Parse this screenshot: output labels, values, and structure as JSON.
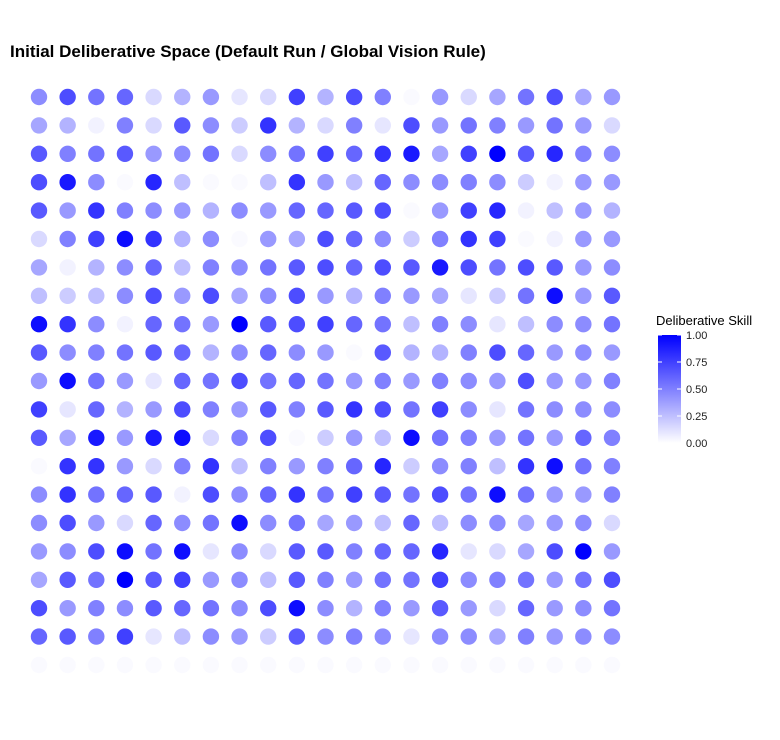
{
  "chart_data": {
    "type": "scatter",
    "title": "Initial Deliberative Space (Default Run / Global Vision Rule)",
    "xlabel": "",
    "ylabel": "",
    "grid": false,
    "color_scale": {
      "low": "#ffffff",
      "high": "#0000ff",
      "min": 0,
      "max": 1
    },
    "legend": {
      "title": "Deliberative Skill",
      "position": "right",
      "ticks": [
        {
          "value": 1.0,
          "label": "1.00"
        },
        {
          "value": 0.75,
          "label": "0.75"
        },
        {
          "value": 0.5,
          "label": "0.50"
        },
        {
          "value": 0.25,
          "label": "0.25"
        },
        {
          "value": 0.0,
          "label": "0.00"
        }
      ]
    },
    "n_cols": 21,
    "n_rows": 21,
    "skill_grid_top_to_bottom": [
      [
        0.45,
        0.7,
        0.55,
        0.6,
        0.15,
        0.3,
        0.4,
        0.1,
        0.15,
        0.75,
        0.3,
        0.7,
        0.5,
        0.02,
        0.4,
        0.15,
        0.35,
        0.55,
        0.7,
        0.35,
        0.4
      ],
      [
        0.35,
        0.3,
        0.05,
        0.5,
        0.15,
        0.65,
        0.45,
        0.2,
        0.8,
        0.3,
        0.15,
        0.5,
        0.1,
        0.7,
        0.4,
        0.55,
        0.5,
        0.4,
        0.55,
        0.4,
        0.15
      ],
      [
        0.65,
        0.5,
        0.55,
        0.65,
        0.4,
        0.45,
        0.55,
        0.15,
        0.45,
        0.55,
        0.75,
        0.6,
        0.8,
        0.9,
        0.35,
        0.75,
        1.0,
        0.65,
        0.85,
        0.5,
        0.45
      ],
      [
        0.7,
        0.9,
        0.45,
        0.02,
        0.85,
        0.25,
        0.02,
        0.02,
        0.25,
        0.8,
        0.4,
        0.25,
        0.6,
        0.45,
        0.45,
        0.5,
        0.45,
        0.2,
        0.05,
        0.4,
        0.4
      ],
      [
        0.65,
        0.4,
        0.8,
        0.5,
        0.45,
        0.4,
        0.3,
        0.45,
        0.4,
        0.6,
        0.6,
        0.65,
        0.7,
        0.02,
        0.4,
        0.75,
        0.85,
        0.05,
        0.25,
        0.4,
        0.3
      ],
      [
        0.15,
        0.5,
        0.75,
        0.95,
        0.8,
        0.3,
        0.45,
        0.02,
        0.4,
        0.35,
        0.7,
        0.6,
        0.45,
        0.2,
        0.5,
        0.8,
        0.75,
        0.02,
        0.05,
        0.4,
        0.4
      ],
      [
        0.35,
        0.05,
        0.3,
        0.45,
        0.6,
        0.25,
        0.5,
        0.45,
        0.55,
        0.65,
        0.7,
        0.6,
        0.7,
        0.65,
        0.9,
        0.7,
        0.55,
        0.7,
        0.65,
        0.4,
        0.45
      ],
      [
        0.25,
        0.2,
        0.25,
        0.45,
        0.7,
        0.4,
        0.7,
        0.35,
        0.45,
        0.7,
        0.4,
        0.3,
        0.5,
        0.4,
        0.35,
        0.1,
        0.2,
        0.55,
        0.95,
        0.4,
        0.65
      ],
      [
        0.95,
        0.8,
        0.45,
        0.05,
        0.6,
        0.55,
        0.4,
        1.0,
        0.65,
        0.7,
        0.75,
        0.6,
        0.55,
        0.25,
        0.5,
        0.45,
        0.1,
        0.25,
        0.45,
        0.45,
        0.55
      ],
      [
        0.65,
        0.45,
        0.5,
        0.55,
        0.65,
        0.6,
        0.3,
        0.45,
        0.6,
        0.45,
        0.4,
        0.02,
        0.65,
        0.3,
        0.3,
        0.5,
        0.7,
        0.6,
        0.4,
        0.45,
        0.4
      ],
      [
        0.4,
        0.95,
        0.55,
        0.4,
        0.1,
        0.6,
        0.55,
        0.7,
        0.55,
        0.6,
        0.55,
        0.4,
        0.5,
        0.4,
        0.5,
        0.45,
        0.4,
        0.7,
        0.4,
        0.4,
        0.5
      ],
      [
        0.75,
        0.1,
        0.6,
        0.3,
        0.4,
        0.7,
        0.5,
        0.4,
        0.65,
        0.5,
        0.65,
        0.8,
        0.7,
        0.55,
        0.75,
        0.45,
        0.1,
        0.55,
        0.45,
        0.45,
        0.45
      ],
      [
        0.65,
        0.35,
        0.9,
        0.4,
        0.9,
        0.95,
        0.15,
        0.5,
        0.7,
        0.02,
        0.2,
        0.4,
        0.25,
        0.95,
        0.55,
        0.5,
        0.4,
        0.55,
        0.4,
        0.6,
        0.5
      ],
      [
        0.02,
        0.8,
        0.8,
        0.4,
        0.15,
        0.5,
        0.8,
        0.25,
        0.5,
        0.4,
        0.5,
        0.6,
        0.85,
        0.2,
        0.45,
        0.5,
        0.25,
        0.8,
        0.95,
        0.55,
        0.5
      ],
      [
        0.45,
        0.8,
        0.55,
        0.6,
        0.65,
        0.05,
        0.7,
        0.45,
        0.6,
        0.8,
        0.55,
        0.75,
        0.65,
        0.55,
        0.7,
        0.55,
        0.95,
        0.55,
        0.4,
        0.4,
        0.5
      ],
      [
        0.45,
        0.7,
        0.4,
        0.15,
        0.6,
        0.45,
        0.55,
        0.95,
        0.45,
        0.55,
        0.35,
        0.4,
        0.25,
        0.6,
        0.25,
        0.45,
        0.45,
        0.35,
        0.4,
        0.45,
        0.15
      ],
      [
        0.4,
        0.45,
        0.7,
        0.95,
        0.55,
        0.95,
        0.1,
        0.45,
        0.15,
        0.65,
        0.65,
        0.5,
        0.6,
        0.6,
        0.85,
        0.1,
        0.15,
        0.35,
        0.7,
        1.0,
        0.4
      ],
      [
        0.35,
        0.65,
        0.55,
        1.0,
        0.65,
        0.75,
        0.4,
        0.45,
        0.25,
        0.65,
        0.5,
        0.4,
        0.55,
        0.55,
        0.75,
        0.45,
        0.5,
        0.55,
        0.4,
        0.55,
        0.7
      ],
      [
        0.7,
        0.4,
        0.5,
        0.45,
        0.65,
        0.6,
        0.55,
        0.45,
        0.7,
        0.95,
        0.45,
        0.3,
        0.5,
        0.4,
        0.65,
        0.4,
        0.15,
        0.6,
        0.4,
        0.45,
        0.55
      ],
      [
        0.6,
        0.65,
        0.5,
        0.75,
        0.1,
        0.25,
        0.45,
        0.4,
        0.2,
        0.65,
        0.45,
        0.5,
        0.45,
        0.1,
        0.45,
        0.45,
        0.35,
        0.5,
        0.4,
        0.45,
        0.45
      ],
      [
        0.02,
        0.02,
        0.02,
        0.02,
        0.02,
        0.02,
        0.02,
        0.02,
        0.02,
        0.02,
        0.02,
        0.02,
        0.02,
        0.02,
        0.02,
        0.02,
        0.02,
        0.02,
        0.02,
        0.02,
        0.02
      ]
    ]
  }
}
